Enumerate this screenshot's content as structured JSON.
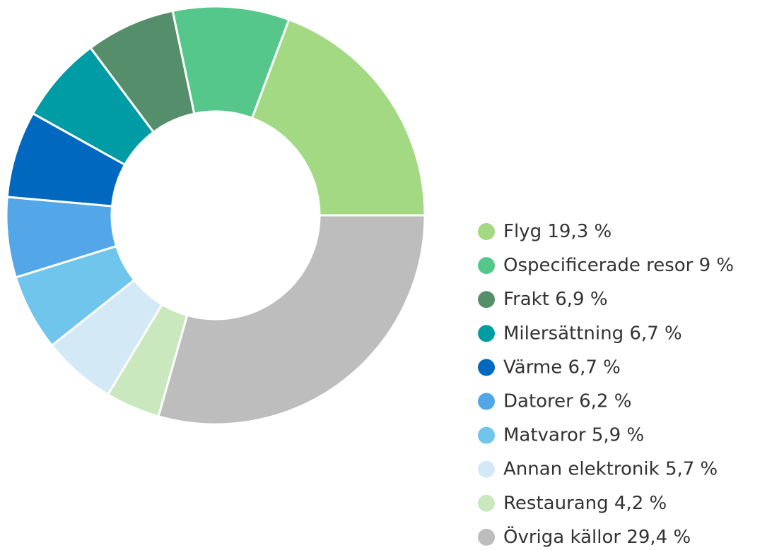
{
  "chart_data": {
    "type": "donut",
    "categories": [
      "Flyg",
      "Ospecificerade resor",
      "Frakt",
      "Milersättning",
      "Värme",
      "Datorer",
      "Matvaror",
      "Annan elektronik",
      "Restaurang",
      "Övriga källor"
    ],
    "values": [
      19.3,
      9,
      6.9,
      6.7,
      6.7,
      6.2,
      5.9,
      5.7,
      4.2,
      29.4
    ],
    "value_labels": [
      "19,3 %",
      "9 %",
      "6,9 %",
      "6,7 %",
      "6,7 %",
      "6,2 %",
      "5,9 %",
      "5,7 %",
      "4,2 %",
      "29,4 %"
    ],
    "colors": [
      "#a3d982",
      "#55c78a",
      "#558e6a",
      "#009ca6",
      "#0069bf",
      "#53a6e8",
      "#6fc5eb",
      "#d3e9f5",
      "#c9e8bd",
      "#bdbdbd"
    ],
    "legend": "right"
  }
}
